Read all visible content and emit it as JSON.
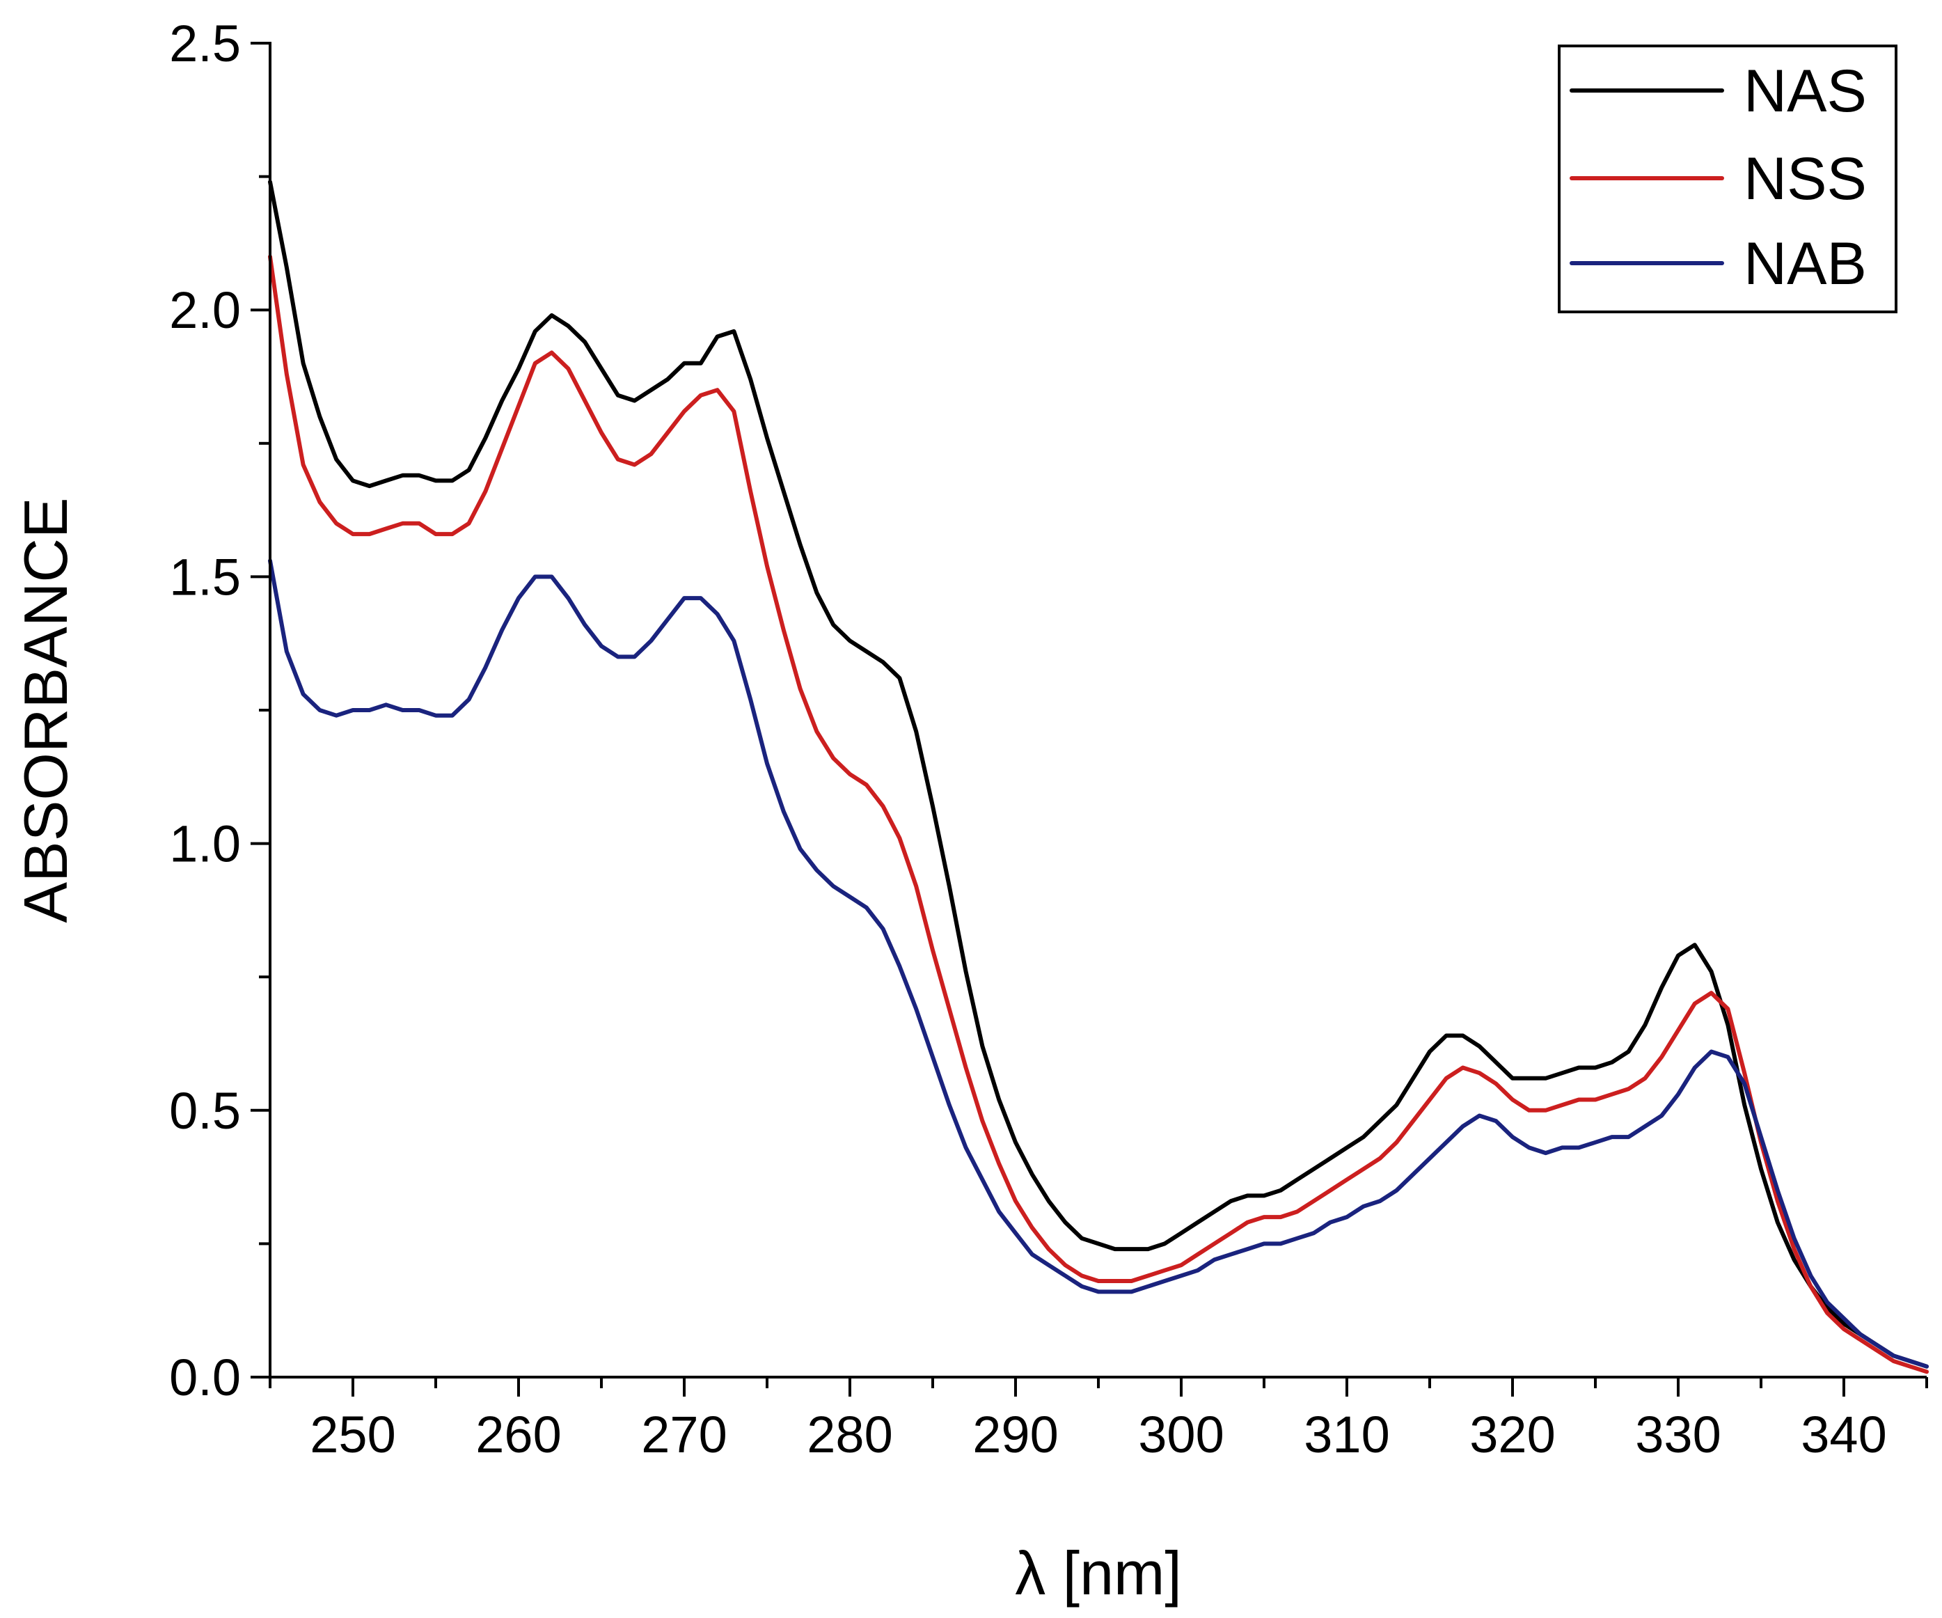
{
  "chart_data": {
    "type": "line",
    "title": "",
    "xlabel": "λ [nm]",
    "ylabel": "ABSORBANCE",
    "xlim": [
      245,
      345
    ],
    "ylim": [
      0.0,
      2.5
    ],
    "x_ticks": [
      250,
      260,
      270,
      280,
      290,
      300,
      310,
      320,
      330,
      340
    ],
    "x_tick_labels": [
      "250",
      "260",
      "270",
      "280",
      "290",
      "300",
      "310",
      "320",
      "330",
      "340"
    ],
    "y_ticks": [
      0.0,
      0.5,
      1.0,
      1.5,
      2.0,
      2.5
    ],
    "y_tick_labels": [
      "0.0",
      "0.5",
      "1.0",
      "1.5",
      "2.0",
      "2.5"
    ],
    "grid": false,
    "legend_position": "top-right",
    "series": [
      {
        "name": "NAS",
        "color": "#000000",
        "points": [
          [
            245,
            2.24
          ],
          [
            246,
            2.08
          ],
          [
            247,
            1.9
          ],
          [
            248,
            1.8
          ],
          [
            249,
            1.72
          ],
          [
            250,
            1.68
          ],
          [
            251,
            1.67
          ],
          [
            252,
            1.68
          ],
          [
            253,
            1.69
          ],
          [
            254,
            1.69
          ],
          [
            255,
            1.68
          ],
          [
            256,
            1.68
          ],
          [
            257,
            1.7
          ],
          [
            258,
            1.76
          ],
          [
            259,
            1.83
          ],
          [
            260,
            1.89
          ],
          [
            261,
            1.96
          ],
          [
            262,
            1.99
          ],
          [
            263,
            1.97
          ],
          [
            264,
            1.94
          ],
          [
            265,
            1.89
          ],
          [
            266,
            1.84
          ],
          [
            267,
            1.83
          ],
          [
            268,
            1.85
          ],
          [
            269,
            1.87
          ],
          [
            270,
            1.9
          ],
          [
            271,
            1.9
          ],
          [
            272,
            1.95
          ],
          [
            273,
            1.96
          ],
          [
            274,
            1.87
          ],
          [
            275,
            1.76
          ],
          [
            276,
            1.66
          ],
          [
            277,
            1.56
          ],
          [
            278,
            1.47
          ],
          [
            279,
            1.41
          ],
          [
            280,
            1.38
          ],
          [
            281,
            1.36
          ],
          [
            282,
            1.34
          ],
          [
            283,
            1.31
          ],
          [
            284,
            1.21
          ],
          [
            285,
            1.07
          ],
          [
            286,
            0.92
          ],
          [
            287,
            0.76
          ],
          [
            288,
            0.62
          ],
          [
            289,
            0.52
          ],
          [
            290,
            0.44
          ],
          [
            291,
            0.38
          ],
          [
            292,
            0.33
          ],
          [
            293,
            0.29
          ],
          [
            294,
            0.26
          ],
          [
            295,
            0.25
          ],
          [
            296,
            0.24
          ],
          [
            297,
            0.24
          ],
          [
            298,
            0.24
          ],
          [
            299,
            0.25
          ],
          [
            300,
            0.27
          ],
          [
            301,
            0.29
          ],
          [
            302,
            0.31
          ],
          [
            303,
            0.33
          ],
          [
            304,
            0.34
          ],
          [
            305,
            0.34
          ],
          [
            306,
            0.35
          ],
          [
            307,
            0.37
          ],
          [
            308,
            0.39
          ],
          [
            309,
            0.41
          ],
          [
            310,
            0.43
          ],
          [
            311,
            0.45
          ],
          [
            312,
            0.48
          ],
          [
            313,
            0.51
          ],
          [
            314,
            0.56
          ],
          [
            315,
            0.61
          ],
          [
            316,
            0.64
          ],
          [
            317,
            0.64
          ],
          [
            318,
            0.62
          ],
          [
            319,
            0.59
          ],
          [
            320,
            0.56
          ],
          [
            321,
            0.56
          ],
          [
            322,
            0.56
          ],
          [
            323,
            0.57
          ],
          [
            324,
            0.58
          ],
          [
            325,
            0.58
          ],
          [
            326,
            0.59
          ],
          [
            327,
            0.61
          ],
          [
            328,
            0.66
          ],
          [
            329,
            0.73
          ],
          [
            330,
            0.79
          ],
          [
            331,
            0.81
          ],
          [
            332,
            0.76
          ],
          [
            333,
            0.66
          ],
          [
            334,
            0.51
          ],
          [
            335,
            0.39
          ],
          [
            336,
            0.29
          ],
          [
            337,
            0.22
          ],
          [
            338,
            0.17
          ],
          [
            339,
            0.13
          ],
          [
            340,
            0.1
          ],
          [
            341,
            0.08
          ],
          [
            342,
            0.06
          ],
          [
            343,
            0.04
          ],
          [
            344,
            0.03
          ],
          [
            345,
            0.02
          ]
        ]
      },
      {
        "name": "NSS",
        "color": "#cc1f1f",
        "points": [
          [
            245,
            2.1
          ],
          [
            246,
            1.88
          ],
          [
            247,
            1.71
          ],
          [
            248,
            1.64
          ],
          [
            249,
            1.6
          ],
          [
            250,
            1.58
          ],
          [
            251,
            1.58
          ],
          [
            252,
            1.59
          ],
          [
            253,
            1.6
          ],
          [
            254,
            1.6
          ],
          [
            255,
            1.58
          ],
          [
            256,
            1.58
          ],
          [
            257,
            1.6
          ],
          [
            258,
            1.66
          ],
          [
            259,
            1.74
          ],
          [
            260,
            1.82
          ],
          [
            261,
            1.9
          ],
          [
            262,
            1.92
          ],
          [
            263,
            1.89
          ],
          [
            264,
            1.83
          ],
          [
            265,
            1.77
          ],
          [
            266,
            1.72
          ],
          [
            267,
            1.71
          ],
          [
            268,
            1.73
          ],
          [
            269,
            1.77
          ],
          [
            270,
            1.81
          ],
          [
            271,
            1.84
          ],
          [
            272,
            1.85
          ],
          [
            273,
            1.81
          ],
          [
            274,
            1.66
          ],
          [
            275,
            1.52
          ],
          [
            276,
            1.4
          ],
          [
            277,
            1.29
          ],
          [
            278,
            1.21
          ],
          [
            279,
            1.16
          ],
          [
            280,
            1.13
          ],
          [
            281,
            1.11
          ],
          [
            282,
            1.07
          ],
          [
            283,
            1.01
          ],
          [
            284,
            0.92
          ],
          [
            285,
            0.8
          ],
          [
            286,
            0.69
          ],
          [
            287,
            0.58
          ],
          [
            288,
            0.48
          ],
          [
            289,
            0.4
          ],
          [
            290,
            0.33
          ],
          [
            291,
            0.28
          ],
          [
            292,
            0.24
          ],
          [
            293,
            0.21
          ],
          [
            294,
            0.19
          ],
          [
            295,
            0.18
          ],
          [
            296,
            0.18
          ],
          [
            297,
            0.18
          ],
          [
            298,
            0.19
          ],
          [
            299,
            0.2
          ],
          [
            300,
            0.21
          ],
          [
            301,
            0.23
          ],
          [
            302,
            0.25
          ],
          [
            303,
            0.27
          ],
          [
            304,
            0.29
          ],
          [
            305,
            0.3
          ],
          [
            306,
            0.3
          ],
          [
            307,
            0.31
          ],
          [
            308,
            0.33
          ],
          [
            309,
            0.35
          ],
          [
            310,
            0.37
          ],
          [
            311,
            0.39
          ],
          [
            312,
            0.41
          ],
          [
            313,
            0.44
          ],
          [
            314,
            0.48
          ],
          [
            315,
            0.52
          ],
          [
            316,
            0.56
          ],
          [
            317,
            0.58
          ],
          [
            318,
            0.57
          ],
          [
            319,
            0.55
          ],
          [
            320,
            0.52
          ],
          [
            321,
            0.5
          ],
          [
            322,
            0.5
          ],
          [
            323,
            0.51
          ],
          [
            324,
            0.52
          ],
          [
            325,
            0.52
          ],
          [
            326,
            0.53
          ],
          [
            327,
            0.54
          ],
          [
            328,
            0.56
          ],
          [
            329,
            0.6
          ],
          [
            330,
            0.65
          ],
          [
            331,
            0.7
          ],
          [
            332,
            0.72
          ],
          [
            333,
            0.69
          ],
          [
            334,
            0.57
          ],
          [
            335,
            0.44
          ],
          [
            336,
            0.33
          ],
          [
            337,
            0.24
          ],
          [
            338,
            0.17
          ],
          [
            339,
            0.12
          ],
          [
            340,
            0.09
          ],
          [
            341,
            0.07
          ],
          [
            342,
            0.05
          ],
          [
            343,
            0.03
          ],
          [
            344,
            0.02
          ],
          [
            345,
            0.01
          ]
        ]
      },
      {
        "name": "NAB",
        "color": "#1a237e",
        "points": [
          [
            245,
            1.53
          ],
          [
            246,
            1.36
          ],
          [
            247,
            1.28
          ],
          [
            248,
            1.25
          ],
          [
            249,
            1.24
          ],
          [
            250,
            1.25
          ],
          [
            251,
            1.25
          ],
          [
            252,
            1.26
          ],
          [
            253,
            1.25
          ],
          [
            254,
            1.25
          ],
          [
            255,
            1.24
          ],
          [
            256,
            1.24
          ],
          [
            257,
            1.27
          ],
          [
            258,
            1.33
          ],
          [
            259,
            1.4
          ],
          [
            260,
            1.46
          ],
          [
            261,
            1.5
          ],
          [
            262,
            1.5
          ],
          [
            263,
            1.46
          ],
          [
            264,
            1.41
          ],
          [
            265,
            1.37
          ],
          [
            266,
            1.35
          ],
          [
            267,
            1.35
          ],
          [
            268,
            1.38
          ],
          [
            269,
            1.42
          ],
          [
            270,
            1.46
          ],
          [
            271,
            1.46
          ],
          [
            272,
            1.43
          ],
          [
            273,
            1.38
          ],
          [
            274,
            1.27
          ],
          [
            275,
            1.15
          ],
          [
            276,
            1.06
          ],
          [
            277,
            0.99
          ],
          [
            278,
            0.95
          ],
          [
            279,
            0.92
          ],
          [
            280,
            0.9
          ],
          [
            281,
            0.88
          ],
          [
            282,
            0.84
          ],
          [
            283,
            0.77
          ],
          [
            284,
            0.69
          ],
          [
            285,
            0.6
          ],
          [
            286,
            0.51
          ],
          [
            287,
            0.43
          ],
          [
            288,
            0.37
          ],
          [
            289,
            0.31
          ],
          [
            290,
            0.27
          ],
          [
            291,
            0.23
          ],
          [
            292,
            0.21
          ],
          [
            293,
            0.19
          ],
          [
            294,
            0.17
          ],
          [
            295,
            0.16
          ],
          [
            296,
            0.16
          ],
          [
            297,
            0.16
          ],
          [
            298,
            0.17
          ],
          [
            299,
            0.18
          ],
          [
            300,
            0.19
          ],
          [
            301,
            0.2
          ],
          [
            302,
            0.22
          ],
          [
            303,
            0.23
          ],
          [
            304,
            0.24
          ],
          [
            305,
            0.25
          ],
          [
            306,
            0.25
          ],
          [
            307,
            0.26
          ],
          [
            308,
            0.27
          ],
          [
            309,
            0.29
          ],
          [
            310,
            0.3
          ],
          [
            311,
            0.32
          ],
          [
            312,
            0.33
          ],
          [
            313,
            0.35
          ],
          [
            314,
            0.38
          ],
          [
            315,
            0.41
          ],
          [
            316,
            0.44
          ],
          [
            317,
            0.47
          ],
          [
            318,
            0.49
          ],
          [
            319,
            0.48
          ],
          [
            320,
            0.45
          ],
          [
            321,
            0.43
          ],
          [
            322,
            0.42
          ],
          [
            323,
            0.43
          ],
          [
            324,
            0.43
          ],
          [
            325,
            0.44
          ],
          [
            326,
            0.45
          ],
          [
            327,
            0.45
          ],
          [
            328,
            0.47
          ],
          [
            329,
            0.49
          ],
          [
            330,
            0.53
          ],
          [
            331,
            0.58
          ],
          [
            332,
            0.61
          ],
          [
            333,
            0.6
          ],
          [
            334,
            0.55
          ],
          [
            335,
            0.45
          ],
          [
            336,
            0.35
          ],
          [
            337,
            0.26
          ],
          [
            338,
            0.19
          ],
          [
            339,
            0.14
          ],
          [
            340,
            0.11
          ],
          [
            341,
            0.08
          ],
          [
            342,
            0.06
          ],
          [
            343,
            0.04
          ],
          [
            344,
            0.03
          ],
          [
            345,
            0.02
          ]
        ]
      }
    ]
  }
}
